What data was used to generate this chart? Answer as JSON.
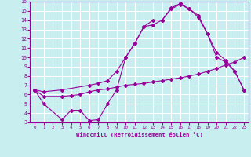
{
  "xlabel": "Windchill (Refroidissement éolien,°C)",
  "bg_color": "#c8eef0",
  "line_color": "#990099",
  "grid_color": "#ffffff",
  "xlim": [
    -0.5,
    23.5
  ],
  "ylim": [
    3,
    16
  ],
  "xticks": [
    0,
    1,
    2,
    3,
    4,
    5,
    6,
    7,
    8,
    9,
    10,
    11,
    12,
    13,
    14,
    15,
    16,
    17,
    18,
    19,
    20,
    21,
    22,
    23
  ],
  "yticks": [
    3,
    4,
    5,
    6,
    7,
    8,
    9,
    10,
    11,
    12,
    13,
    14,
    15,
    16
  ],
  "series1_x": [
    0,
    1,
    3,
    4,
    5,
    6,
    7,
    8,
    9,
    10,
    11,
    12,
    13,
    14,
    15,
    16,
    17,
    18,
    19,
    20,
    21,
    22,
    23
  ],
  "series1_y": [
    6.5,
    5.0,
    3.3,
    4.3,
    4.3,
    3.2,
    3.3,
    5.0,
    6.5,
    10.0,
    11.5,
    13.3,
    14.0,
    14.0,
    15.3,
    15.8,
    15.2,
    14.3,
    12.5,
    10.0,
    9.5,
    8.5,
    6.5
  ],
  "series2_x": [
    0,
    1,
    3,
    4,
    5,
    6,
    7,
    8,
    9,
    10,
    11,
    12,
    13,
    14,
    15,
    16,
    17,
    18,
    19,
    20,
    21,
    22,
    23
  ],
  "series2_y": [
    6.5,
    5.8,
    5.8,
    5.9,
    6.0,
    6.3,
    6.5,
    6.6,
    6.8,
    7.0,
    7.1,
    7.2,
    7.35,
    7.5,
    7.65,
    7.8,
    8.0,
    8.2,
    8.5,
    8.8,
    9.2,
    9.5,
    10.0
  ],
  "series3_x": [
    0,
    1,
    3,
    6,
    7,
    8,
    9,
    10,
    11,
    12,
    13,
    14,
    15,
    16,
    17,
    18,
    19,
    20,
    21,
    22,
    23
  ],
  "series3_y": [
    6.5,
    6.3,
    6.5,
    7.0,
    7.2,
    7.5,
    8.5,
    10.0,
    11.5,
    13.3,
    13.5,
    14.0,
    15.2,
    15.7,
    15.2,
    14.5,
    12.5,
    10.5,
    9.7,
    8.5,
    6.5
  ]
}
